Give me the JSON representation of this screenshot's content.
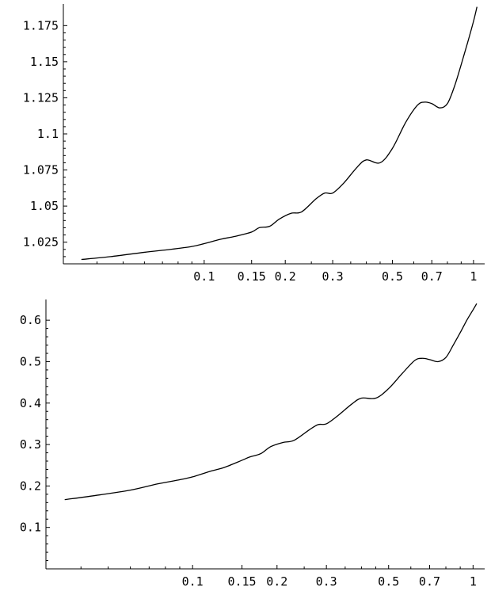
{
  "chart_data": [
    {
      "type": "line",
      "x_scale": "log",
      "xlim": [
        0.03,
        1.1
      ],
      "ylim": [
        1.01,
        1.19
      ],
      "x_ticks": [
        0.1,
        0.15,
        0.2,
        0.3,
        0.5,
        0.7,
        1
      ],
      "x_tick_labels": [
        "0.1",
        "0.15",
        "0.2",
        "0.3",
        "0.5",
        "0.7",
        "1"
      ],
      "y_ticks": [
        1.025,
        1.05,
        1.075,
        1.1,
        1.125,
        1.15,
        1.175
      ],
      "y_tick_labels": [
        "1.025",
        "1.05",
        "1.075",
        "1.1",
        "1.125",
        "1.15",
        "1.175"
      ],
      "grid": false,
      "series": [
        {
          "x": [
            0.035,
            0.045,
            0.06,
            0.075,
            0.09,
            0.1,
            0.115,
            0.13,
            0.15,
            0.16,
            0.175,
            0.19,
            0.21,
            0.23,
            0.26,
            0.28,
            0.3,
            0.33,
            0.37,
            0.4,
            0.45,
            0.5,
            0.56,
            0.62,
            0.66,
            0.7,
            0.75,
            0.8,
            0.85,
            0.9,
            0.95,
            1.0,
            1.03
          ],
          "y": [
            1.013,
            1.015,
            1.018,
            1.02,
            1.022,
            1.024,
            1.027,
            1.029,
            1.032,
            1.035,
            1.036,
            1.041,
            1.045,
            1.046,
            1.055,
            1.059,
            1.059,
            1.066,
            1.077,
            1.082,
            1.08,
            1.09,
            1.108,
            1.12,
            1.122,
            1.121,
            1.118,
            1.121,
            1.133,
            1.148,
            1.163,
            1.178,
            1.188
          ]
        }
      ]
    },
    {
      "type": "line",
      "x_scale": "log",
      "xlim": [
        0.03,
        1.1
      ],
      "ylim": [
        0.0,
        0.65
      ],
      "x_ticks": [
        0.1,
        0.15,
        0.2,
        0.3,
        0.5,
        0.7,
        1
      ],
      "x_tick_labels": [
        "0.1",
        "0.15",
        "0.2",
        "0.3",
        "0.5",
        "0.7",
        "1"
      ],
      "y_ticks": [
        0.1,
        0.2,
        0.3,
        0.4,
        0.5,
        0.6
      ],
      "y_tick_labels": [
        "0.1",
        "0.2",
        "0.3",
        "0.4",
        "0.5",
        "0.6"
      ],
      "grid": false,
      "series": [
        {
          "x": [
            0.035,
            0.045,
            0.06,
            0.075,
            0.09,
            0.1,
            0.115,
            0.13,
            0.15,
            0.16,
            0.175,
            0.19,
            0.21,
            0.23,
            0.26,
            0.28,
            0.3,
            0.33,
            0.37,
            0.4,
            0.45,
            0.5,
            0.56,
            0.62,
            0.66,
            0.7,
            0.75,
            0.8,
            0.85,
            0.9,
            0.95,
            1.0,
            1.03
          ],
          "y": [
            0.167,
            0.177,
            0.19,
            0.205,
            0.215,
            0.222,
            0.235,
            0.245,
            0.262,
            0.27,
            0.278,
            0.295,
            0.305,
            0.31,
            0.335,
            0.348,
            0.35,
            0.37,
            0.398,
            0.412,
            0.412,
            0.435,
            0.472,
            0.503,
            0.508,
            0.505,
            0.5,
            0.51,
            0.54,
            0.57,
            0.6,
            0.625,
            0.64
          ]
        }
      ]
    }
  ]
}
